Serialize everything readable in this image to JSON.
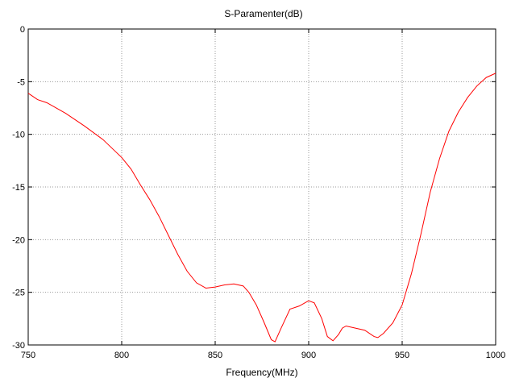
{
  "chart_data": {
    "type": "line",
    "title": "S-Paramenter(dB)",
    "xlabel": "Frequency(MHz)",
    "ylabel": "",
    "xlim": [
      750,
      1000
    ],
    "ylim": [
      -30,
      0
    ],
    "xticks": [
      750,
      800,
      850,
      900,
      950,
      1000
    ],
    "yticks": [
      0,
      -5,
      -10,
      -15,
      -20,
      -25,
      -30
    ],
    "xtick_labels": [
      "750",
      "800",
      "850",
      "900",
      "950",
      "1000"
    ],
    "ytick_labels": [
      "0",
      "-5",
      "-10",
      "-15",
      "-20",
      "-25",
      "-30"
    ],
    "grid": true,
    "line_color": "#ff0000",
    "series": [
      {
        "x": [
          750,
          755,
          760,
          770,
          780,
          790,
          800,
          805,
          810,
          815,
          820,
          825,
          830,
          835,
          840,
          845,
          850,
          855,
          860,
          865,
          868,
          872,
          876,
          880,
          882,
          885,
          890,
          895,
          900,
          903,
          907,
          910,
          913,
          916,
          918,
          920,
          925,
          930,
          935,
          937,
          940,
          945,
          950,
          955,
          960,
          965,
          970,
          975,
          980,
          985,
          990,
          995,
          1000
        ],
        "y": [
          -6.1,
          -6.7,
          -7.0,
          -8.0,
          -9.2,
          -10.5,
          -12.2,
          -13.3,
          -14.8,
          -16.2,
          -17.8,
          -19.6,
          -21.4,
          -23.0,
          -24.1,
          -24.6,
          -24.5,
          -24.3,
          -24.2,
          -24.4,
          -25.0,
          -26.2,
          -27.8,
          -29.5,
          -29.7,
          -28.5,
          -26.6,
          -26.3,
          -25.8,
          -26.0,
          -27.5,
          -29.2,
          -29.6,
          -29.0,
          -28.4,
          -28.2,
          -28.4,
          -28.6,
          -29.2,
          -29.3,
          -28.9,
          -27.9,
          -26.2,
          -23.2,
          -19.5,
          -15.5,
          -12.3,
          -9.7,
          -7.9,
          -6.5,
          -5.4,
          -4.6,
          -4.2
        ]
      }
    ]
  }
}
